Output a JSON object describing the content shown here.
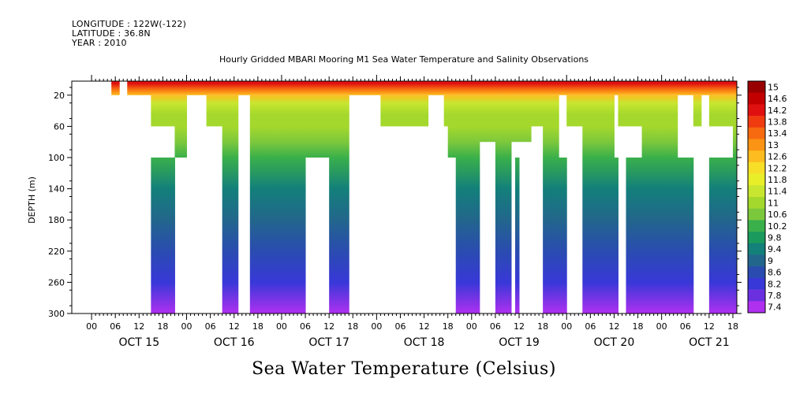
{
  "header": {
    "longitude": "LONGITUDE : 122W(-122)",
    "latitude": "LATITUDE : 36.8N",
    "year": "YEAR : 2010"
  },
  "chart_data": {
    "type": "heatmap",
    "title": "Hourly Gridded MBARI Mooring M1 Sea Water Temperature and Salinity Observations",
    "xtitle": "Sea Water Temperature (Celsius)",
    "ylabel": "DEPTH (m)",
    "y_ticks": [
      20,
      60,
      100,
      140,
      180,
      220,
      260,
      300
    ],
    "ylim": [
      300,
      2
    ],
    "hour_ticks": [
      "00",
      "06",
      "12",
      "18",
      "00",
      "06",
      "12",
      "18",
      "00",
      "06",
      "12",
      "18",
      "00",
      "06",
      "12",
      "18",
      "00",
      "06",
      "12",
      "18",
      "00",
      "06",
      "12",
      "18",
      "00",
      "06",
      "12",
      "18"
    ],
    "day_labels": [
      "OCT 15",
      "OCT 16",
      "OCT 17",
      "OCT 18",
      "OCT 19",
      "OCT 20",
      "OCT 21"
    ],
    "x_range_hours": [
      -5,
      163
    ],
    "colorbar_levels": [
      15,
      14.6,
      14.2,
      13.8,
      13.4,
      13,
      12.6,
      12.2,
      11.8,
      11.4,
      11,
      10.6,
      10.2,
      9.8,
      9.4,
      9,
      8.6,
      8.2,
      7.8,
      7.4
    ],
    "colorbar_colors": [
      "#990000",
      "#c20000",
      "#e01010",
      "#f03a10",
      "#f76a10",
      "#fb9414",
      "#fdbd20",
      "#f7de28",
      "#e8ee28",
      "#c8e630",
      "#a4d82c",
      "#7cc83c",
      "#3ab04a",
      "#1a9a5c",
      "#13807a",
      "#22668c",
      "#2a4cb0",
      "#3838d8",
      "#6a30e0",
      "#b030f0"
    ],
    "temperature_profile": {
      "depths": [
        5,
        12,
        20,
        30,
        45,
        60,
        80,
        100,
        140,
        180,
        220,
        260,
        300
      ],
      "temps": [
        14.2,
        13.3,
        12.4,
        11.6,
        11.1,
        10.9,
        10.5,
        10.1,
        9.6,
        9.1,
        8.6,
        8.1,
        7.6
      ]
    },
    "data_blocks": [
      {
        "h0": 5,
        "h1": 7,
        "d0": 2,
        "d1": 20
      },
      {
        "h0": 9,
        "h1": 15,
        "d0": 2,
        "d1": 20
      },
      {
        "h0": 15,
        "h1": 163,
        "d0": 2,
        "d1": 20
      },
      {
        "h0": 15,
        "h1": 21,
        "d0": 20,
        "d1": 60
      },
      {
        "h0": 15,
        "h1": 21,
        "d0": 100,
        "d1": 300
      },
      {
        "h0": 21,
        "h1": 24,
        "d0": 20,
        "d1": 100
      },
      {
        "h0": 29,
        "h1": 33,
        "d0": 20,
        "d1": 60
      },
      {
        "h0": 33,
        "h1": 37,
        "d0": 20,
        "d1": 300
      },
      {
        "h0": 40,
        "h1": 54,
        "d0": 20,
        "d1": 300
      },
      {
        "h0": 54,
        "h1": 60,
        "d0": 20,
        "d1": 100
      },
      {
        "h0": 60,
        "h1": 65,
        "d0": 20,
        "d1": 300
      },
      {
        "h0": 73,
        "h1": 85,
        "d0": 20,
        "d1": 60
      },
      {
        "h0": 89,
        "h1": 90,
        "d0": 20,
        "d1": 60
      },
      {
        "h0": 90,
        "h1": 92,
        "d0": 20,
        "d1": 100
      },
      {
        "h0": 92,
        "h1": 98,
        "d0": 20,
        "d1": 300
      },
      {
        "h0": 98,
        "h1": 102,
        "d0": 20,
        "d1": 80
      },
      {
        "h0": 102,
        "h1": 106,
        "d0": 20,
        "d1": 300
      },
      {
        "h0": 106,
        "h1": 111,
        "d0": 20,
        "d1": 80
      },
      {
        "h0": 111,
        "h1": 114,
        "d0": 20,
        "d1": 60
      },
      {
        "h0": 114,
        "h1": 118,
        "d0": 20,
        "d1": 300
      },
      {
        "h0": 120,
        "h1": 124,
        "d0": 20,
        "d1": 60
      },
      {
        "h0": 124,
        "h1": 132,
        "d0": 20,
        "d1": 300
      },
      {
        "h0": 133,
        "h1": 139,
        "d0": 20,
        "d1": 60
      },
      {
        "h0": 139,
        "h1": 148,
        "d0": 20,
        "d1": 300
      },
      {
        "h0": 152,
        "h1": 154,
        "d0": 20,
        "d1": 60
      },
      {
        "h0": 156,
        "h1": 162,
        "d0": 20,
        "d1": 60
      },
      {
        "h0": 162,
        "h1": 163,
        "d0": 20,
        "d1": 300
      },
      {
        "h0": 107,
        "h1": 108,
        "d0": 100,
        "d1": 300
      },
      {
        "h0": 115,
        "h1": 120,
        "d0": 100,
        "d1": 300
      },
      {
        "h0": 127,
        "h1": 133,
        "d0": 100,
        "d1": 300
      },
      {
        "h0": 135,
        "h1": 139,
        "d0": 100,
        "d1": 300
      },
      {
        "h0": 141,
        "h1": 142,
        "d0": 100,
        "d1": 300
      },
      {
        "h0": 148,
        "h1": 152,
        "d0": 100,
        "d1": 300
      },
      {
        "h0": 156,
        "h1": 158,
        "d0": 100,
        "d1": 300
      },
      {
        "h0": 158,
        "h1": 162,
        "d0": 100,
        "d1": 300
      }
    ]
  }
}
